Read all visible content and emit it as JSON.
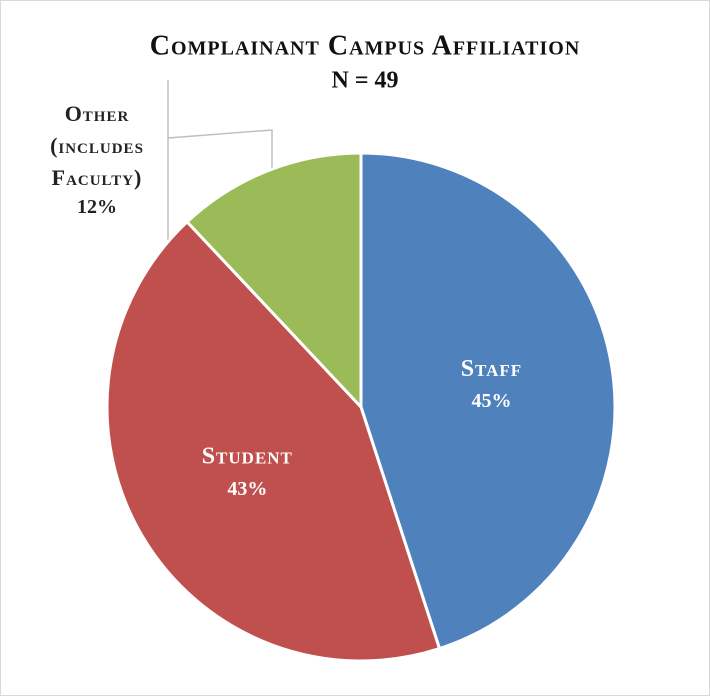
{
  "chart_data": {
    "type": "pie",
    "title": "Complainant Campus Affiliation",
    "subtitle": "N = 49",
    "categories": [
      "Staff",
      "Student",
      "Other (includes Faculty)"
    ],
    "values": [
      45,
      43,
      12
    ],
    "value_labels": [
      "45%",
      "43%",
      "12%"
    ],
    "colors": [
      "#4f81bd",
      "#c0504d",
      "#9bbb59"
    ]
  }
}
